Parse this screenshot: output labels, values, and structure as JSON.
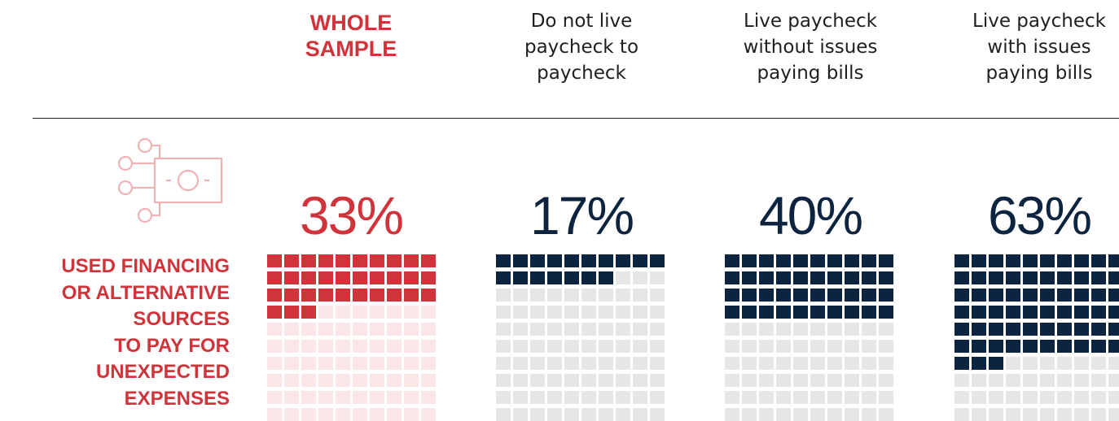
{
  "headers": [
    {
      "text": "WHOLE\nSAMPLE",
      "highlight": true
    },
    {
      "text": "Do not live\npaycheck to\npaycheck",
      "highlight": false
    },
    {
      "text": "Live paycheck\nwithout issues\npaying bills",
      "highlight": false
    },
    {
      "text": "Live paycheck\nwith issues\npaying bills",
      "highlight": false
    }
  ],
  "metric_label": "USED FINANCING\nOR ALTERNATIVE\nSOURCES\nTO PAY FOR\nUNEXPECTED\nEXPENSES",
  "icon": "money-circuit-icon",
  "colors": {
    "highlight": "#d0343a",
    "highlight_empty": "#fae5e7",
    "primary": "#0d2441",
    "primary_empty": "#e5e6e8",
    "rule": "#222222",
    "icon_stroke": "#efb3b6"
  },
  "chart_data": {
    "type": "waffle",
    "grid": {
      "rows": 10,
      "cols": 10
    },
    "categories": [
      "WHOLE SAMPLE",
      "Do not live paycheck to paycheck",
      "Live paycheck without issues paying bills",
      "Live paycheck with issues paying bills"
    ],
    "values": [
      33,
      17,
      40,
      63
    ],
    "labels": [
      "33%",
      "17%",
      "40%",
      "63%"
    ],
    "unit": "%"
  }
}
